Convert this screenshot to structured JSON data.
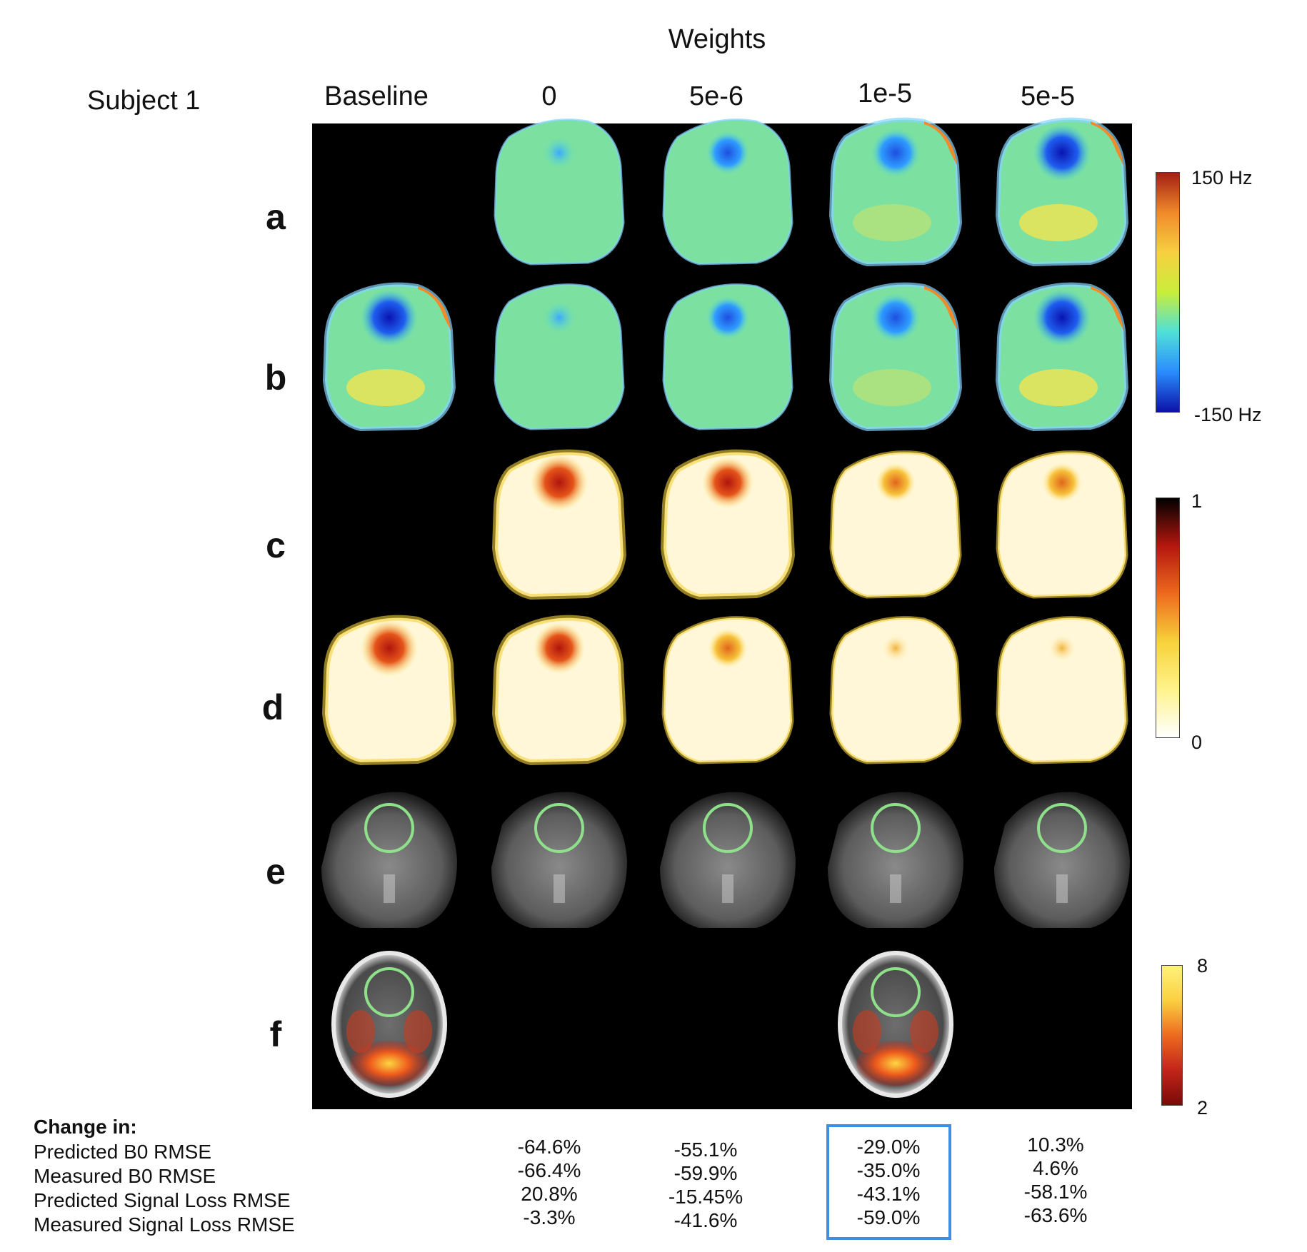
{
  "figure": {
    "title": "Weights",
    "subject_label": "Subject 1",
    "columns": [
      "Baseline",
      "0",
      "5e-6",
      "1e-5",
      "5e-5"
    ],
    "rows": [
      "a",
      "b",
      "c",
      "d",
      "e",
      "f"
    ]
  },
  "colorbars": {
    "b0": {
      "max": "150 Hz",
      "min": "-150 Hz",
      "colors": [
        "#0b12a8",
        "#2a8cff",
        "#4fe0d8",
        "#c8ee3a",
        "#f7d040",
        "#f08a2a",
        "#a31f12"
      ]
    },
    "signal_loss": {
      "max": "1",
      "min": "0",
      "colors": [
        "#ffffff",
        "#fff38a",
        "#f7d23a",
        "#ee6a1e",
        "#b5170e",
        "#000000"
      ]
    },
    "activation": {
      "max": "8",
      "min": "2",
      "colors": [
        "#7a0a06",
        "#c3241a",
        "#ee6a1e",
        "#fbd040",
        "#fff27a"
      ]
    }
  },
  "table": {
    "title": "Change in:",
    "rows": [
      "Predicted B0 RMSE",
      "Measured B0 RMSE",
      "Predicted Signal Loss RMSE",
      "Measured Signal Loss RMSE"
    ],
    "columns": [
      {
        "weight": "0",
        "values": [
          "-64.6%",
          "-66.4%",
          "20.8%",
          "-3.3%"
        ]
      },
      {
        "weight": "5e-6",
        "values": [
          "-55.1%",
          "-59.9%",
          "-15.45%",
          "-41.6%"
        ]
      },
      {
        "weight": "1e-5",
        "values": [
          "-29.0%",
          "-35.0%",
          "-43.1%",
          "-59.0%"
        ],
        "highlighted": true
      },
      {
        "weight": "5e-5",
        "values": [
          "10.3%",
          "4.6%",
          "-58.1%",
          "-63.6%"
        ]
      }
    ],
    "highlight_color": "#3d8fe3"
  }
}
